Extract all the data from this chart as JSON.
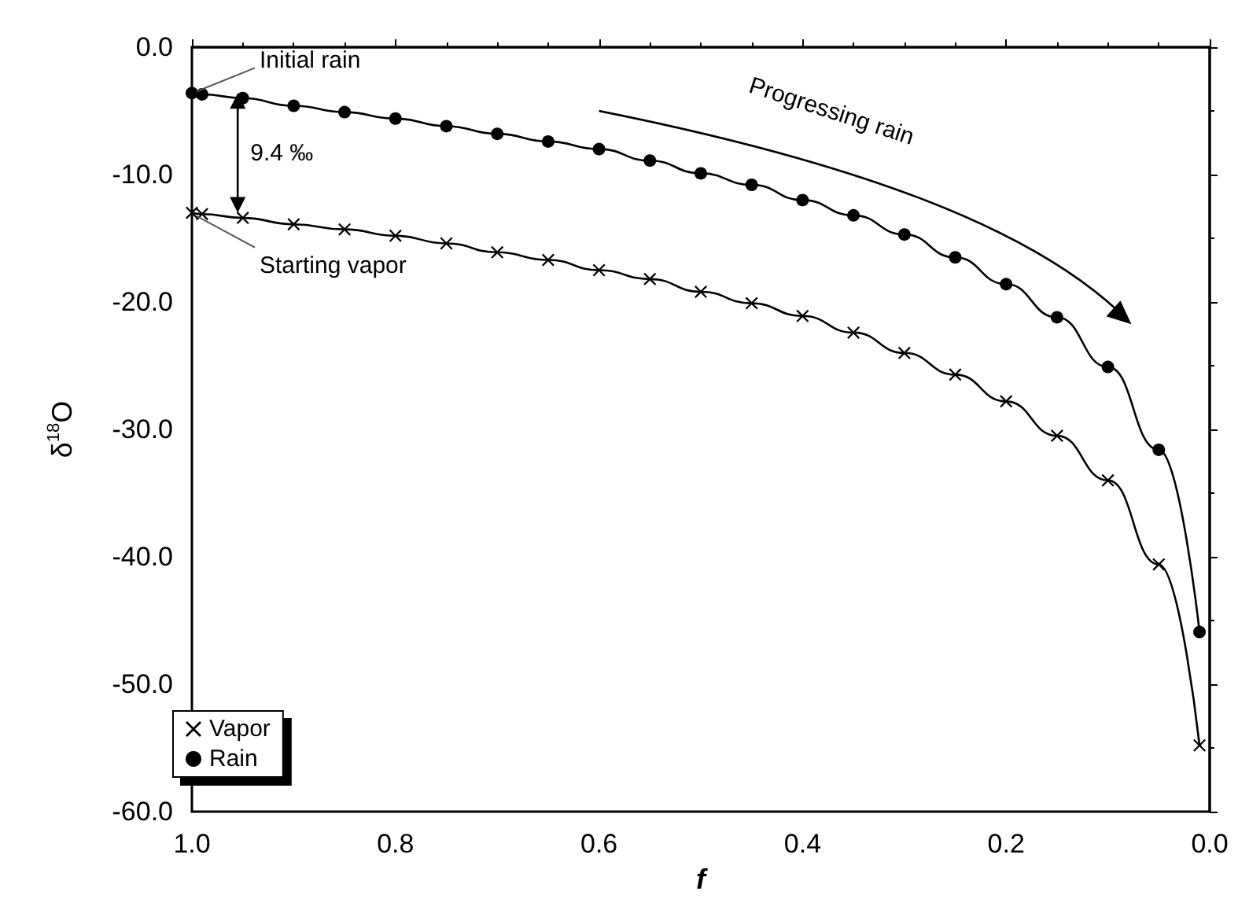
{
  "chart_data": {
    "type": "line",
    "xlabel": "f",
    "ylabel": "δ$^{18}$O",
    "x": [
      1.0,
      0.99,
      0.95,
      0.9,
      0.85,
      0.8,
      0.75,
      0.7,
      0.65,
      0.6,
      0.55,
      0.5,
      0.45,
      0.4,
      0.35,
      0.3,
      0.25,
      0.2,
      0.15,
      0.1,
      0.05,
      0.01
    ],
    "series": [
      {
        "name": "Vapor",
        "color": "#000000",
        "marker": "cross",
        "values": [
          -13.0,
          -13.1,
          -13.4,
          -13.9,
          -14.3,
          -14.8,
          -15.4,
          -16.1,
          -16.7,
          -17.5,
          -18.2,
          -19.2,
          -20.1,
          -21.1,
          -22.4,
          -24.0,
          -25.7,
          -27.8,
          -30.5,
          -34.0,
          -40.6,
          -54.8
        ]
      },
      {
        "name": "Rain",
        "color": "#000000",
        "marker": "circle",
        "values": [
          -3.6,
          -3.7,
          -4.0,
          -4.6,
          -5.1,
          -5.6,
          -6.2,
          -6.8,
          -7.4,
          -8.0,
          -8.9,
          -9.9,
          -10.8,
          -12.0,
          -13.2,
          -14.7,
          -16.5,
          -18.6,
          -21.2,
          -25.1,
          -31.6,
          -45.9
        ]
      }
    ],
    "xlim": [
      1.0,
      0.0
    ],
    "xticks": [
      {
        "value": 1,
        "label": "1.0"
      },
      {
        "value": 0.8,
        "label": "0.8"
      },
      {
        "value": 0.6,
        "label": "0.6"
      },
      {
        "value": 0.4,
        "label": "0.4"
      },
      {
        "value": 0.2,
        "label": "0.2"
      },
      {
        "value": 0,
        "label": "0.0"
      }
    ],
    "ylim": [
      -60,
      0
    ],
    "yticks": [
      {
        "value": -60,
        "label": "-60.0"
      },
      {
        "value": -50,
        "label": "-50.0"
      },
      {
        "value": -40,
        "label": "-40.0"
      },
      {
        "value": -30,
        "label": "-30.0"
      },
      {
        "value": -20,
        "label": "-20.0"
      },
      {
        "value": -10,
        "label": "-10.0"
      },
      {
        "value": 0,
        "label": "0.0"
      }
    ],
    "annotations": [
      {
        "text": "Initial rain",
        "x": 1.0,
        "y": -3.6
      },
      {
        "text": "Starting vapor",
        "x": 1.0,
        "y": -13.0
      },
      "9.4 ‰",
      "Progressing rain"
    ],
    "legend": "bottom left",
    "grid": false,
    "line_style": "solid"
  }
}
